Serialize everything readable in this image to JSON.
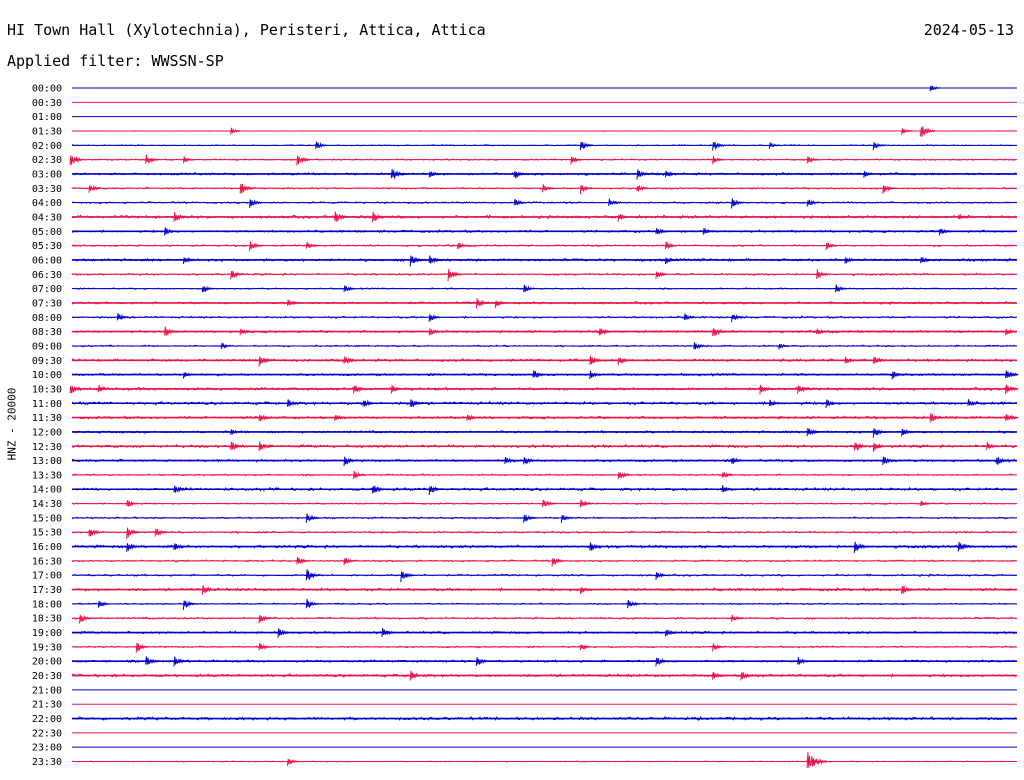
{
  "header": {
    "station": "HI Town Hall (Xylotechnia), Peristeri, Attica, Attica",
    "date": "2024-05-13",
    "filter": "Applied filter: WWSSN-SP"
  },
  "colors": {
    "even_row": "#0000c8",
    "odd_row": "#e8144a"
  },
  "chart_data": {
    "type": "line",
    "title": "HI Town Hall (Xylotechnia), Peristeri, Attica, Attica",
    "subtitle": "Applied filter: WWSSN-SP",
    "ylabel": "HNZ - 20000",
    "xlabel": "",
    "row_labels": [
      "00:00",
      "00:30",
      "01:00",
      "01:30",
      "02:00",
      "02:30",
      "03:00",
      "03:30",
      "04:00",
      "04:30",
      "05:00",
      "05:30",
      "06:00",
      "06:30",
      "07:00",
      "07:30",
      "08:00",
      "08:30",
      "09:00",
      "09:30",
      "10:00",
      "10:30",
      "11:00",
      "11:30",
      "12:00",
      "12:30",
      "13:00",
      "13:30",
      "14:00",
      "14:30",
      "15:00",
      "15:30",
      "16:00",
      "16:30",
      "17:00",
      "17:30",
      "18:00",
      "18:30",
      "19:00",
      "19:30",
      "20:00",
      "20:30",
      "21:00",
      "21:30",
      "22:00",
      "22:30",
      "23:00",
      "23:30"
    ],
    "series": [
      {
        "label": "00:00",
        "noise": 0.0,
        "events": [
          [
            0.91,
            4
          ]
        ]
      },
      {
        "label": "00:30",
        "noise": 0.0,
        "events": []
      },
      {
        "label": "01:00",
        "noise": 0.0,
        "events": []
      },
      {
        "label": "01:30",
        "noise": 0.2,
        "events": [
          [
            0.17,
            4
          ],
          [
            0.88,
            4
          ],
          [
            0.9,
            8
          ]
        ]
      },
      {
        "label": "02:00",
        "noise": 0.4,
        "events": [
          [
            0.26,
            5
          ],
          [
            0.54,
            6
          ],
          [
            0.68,
            6
          ],
          [
            0.74,
            4
          ],
          [
            0.85,
            5
          ]
        ]
      },
      {
        "label": "02:30",
        "noise": 0.5,
        "events": [
          [
            0.0,
            7
          ],
          [
            0.08,
            6
          ],
          [
            0.12,
            4
          ],
          [
            0.24,
            7
          ],
          [
            0.53,
            5
          ],
          [
            0.68,
            5
          ],
          [
            0.78,
            5
          ]
        ]
      },
      {
        "label": "03:00",
        "noise": 0.8,
        "events": [
          [
            0.34,
            8
          ],
          [
            0.38,
            5
          ],
          [
            0.47,
            6
          ],
          [
            0.6,
            6
          ],
          [
            0.63,
            5
          ],
          [
            0.84,
            4
          ]
        ]
      },
      {
        "label": "03:30",
        "noise": 0.6,
        "events": [
          [
            0.02,
            5
          ],
          [
            0.18,
            7
          ],
          [
            0.5,
            5
          ],
          [
            0.54,
            6
          ],
          [
            0.6,
            5
          ],
          [
            0.86,
            6
          ]
        ]
      },
      {
        "label": "04:00",
        "noise": 0.6,
        "events": [
          [
            0.19,
            6
          ],
          [
            0.47,
            5
          ],
          [
            0.57,
            5
          ],
          [
            0.7,
            6
          ],
          [
            0.78,
            5
          ]
        ]
      },
      {
        "label": "04:30",
        "noise": 1.0,
        "events": [
          [
            0.11,
            6
          ],
          [
            0.28,
            7
          ],
          [
            0.32,
            6
          ],
          [
            0.58,
            5
          ],
          [
            0.94,
            4
          ]
        ]
      },
      {
        "label": "05:00",
        "noise": 0.8,
        "events": [
          [
            0.1,
            5
          ],
          [
            0.62,
            5
          ],
          [
            0.67,
            5
          ],
          [
            0.92,
            5
          ]
        ]
      },
      {
        "label": "05:30",
        "noise": 0.6,
        "events": [
          [
            0.19,
            6
          ],
          [
            0.25,
            5
          ],
          [
            0.41,
            5
          ],
          [
            0.63,
            5
          ],
          [
            0.8,
            5
          ]
        ]
      },
      {
        "label": "06:00",
        "noise": 0.9,
        "events": [
          [
            0.12,
            5
          ],
          [
            0.36,
            7
          ],
          [
            0.38,
            6
          ],
          [
            0.63,
            5
          ],
          [
            0.82,
            5
          ],
          [
            0.9,
            5
          ]
        ]
      },
      {
        "label": "06:30",
        "noise": 0.7,
        "events": [
          [
            0.17,
            6
          ],
          [
            0.4,
            7
          ],
          [
            0.62,
            5
          ],
          [
            0.79,
            6
          ]
        ]
      },
      {
        "label": "07:00",
        "noise": 0.5,
        "events": [
          [
            0.14,
            5
          ],
          [
            0.29,
            5
          ],
          [
            0.48,
            5
          ],
          [
            0.81,
            5
          ]
        ]
      },
      {
        "label": "07:30",
        "noise": 0.8,
        "events": [
          [
            0.23,
            5
          ],
          [
            0.43,
            6
          ],
          [
            0.45,
            5
          ]
        ]
      },
      {
        "label": "08:00",
        "noise": 0.7,
        "events": [
          [
            0.05,
            5
          ],
          [
            0.38,
            5
          ],
          [
            0.65,
            5
          ],
          [
            0.7,
            5
          ]
        ]
      },
      {
        "label": "08:30",
        "noise": 0.8,
        "events": [
          [
            0.1,
            6
          ],
          [
            0.18,
            5
          ],
          [
            0.38,
            5
          ],
          [
            0.56,
            6
          ],
          [
            0.68,
            7
          ],
          [
            0.79,
            5
          ],
          [
            0.99,
            5
          ]
        ]
      },
      {
        "label": "09:00",
        "noise": 0.6,
        "events": [
          [
            0.16,
            4
          ],
          [
            0.66,
            6
          ],
          [
            0.75,
            4
          ]
        ]
      },
      {
        "label": "09:30",
        "noise": 0.9,
        "events": [
          [
            0.2,
            7
          ],
          [
            0.29,
            6
          ],
          [
            0.55,
            7
          ],
          [
            0.58,
            6
          ],
          [
            0.82,
            5
          ],
          [
            0.85,
            6
          ]
        ]
      },
      {
        "label": "10:00",
        "noise": 0.8,
        "events": [
          [
            0.12,
            4
          ],
          [
            0.49,
            6
          ],
          [
            0.55,
            5
          ],
          [
            0.87,
            5
          ],
          [
            0.99,
            6
          ]
        ]
      },
      {
        "label": "10:30",
        "noise": 1.0,
        "events": [
          [
            0.0,
            6
          ],
          [
            0.03,
            5
          ],
          [
            0.3,
            6
          ],
          [
            0.34,
            5
          ],
          [
            0.73,
            6
          ],
          [
            0.77,
            6
          ],
          [
            0.99,
            6
          ]
        ]
      },
      {
        "label": "11:00",
        "noise": 1.0,
        "events": [
          [
            0.23,
            5
          ],
          [
            0.31,
            6
          ],
          [
            0.36,
            6
          ],
          [
            0.74,
            5
          ],
          [
            0.8,
            5
          ],
          [
            0.95,
            5
          ]
        ]
      },
      {
        "label": "11:30",
        "noise": 0.9,
        "events": [
          [
            0.2,
            6
          ],
          [
            0.28,
            5
          ],
          [
            0.42,
            5
          ],
          [
            0.91,
            6
          ],
          [
            0.99,
            6
          ]
        ]
      },
      {
        "label": "12:00",
        "noise": 0.8,
        "events": [
          [
            0.17,
            4
          ],
          [
            0.78,
            6
          ],
          [
            0.85,
            6
          ],
          [
            0.88,
            5
          ]
        ]
      },
      {
        "label": "12:30",
        "noise": 1.0,
        "events": [
          [
            0.17,
            7
          ],
          [
            0.2,
            6
          ],
          [
            0.83,
            7
          ],
          [
            0.85,
            6
          ],
          [
            0.97,
            5
          ]
        ]
      },
      {
        "label": "13:00",
        "noise": 0.8,
        "events": [
          [
            0.29,
            6
          ],
          [
            0.46,
            5
          ],
          [
            0.48,
            6
          ],
          [
            0.7,
            5
          ],
          [
            0.86,
            6
          ],
          [
            0.98,
            6
          ]
        ]
      },
      {
        "label": "13:30",
        "noise": 0.6,
        "events": [
          [
            0.3,
            5
          ],
          [
            0.58,
            6
          ],
          [
            0.69,
            5
          ]
        ]
      },
      {
        "label": "14:00",
        "noise": 1.0,
        "events": [
          [
            0.11,
            6
          ],
          [
            0.32,
            6
          ],
          [
            0.38,
            6
          ],
          [
            0.69,
            5
          ]
        ]
      },
      {
        "label": "14:30",
        "noise": 0.5,
        "events": [
          [
            0.06,
            5
          ],
          [
            0.5,
            6
          ],
          [
            0.54,
            6
          ],
          [
            0.9,
            4
          ]
        ]
      },
      {
        "label": "15:00",
        "noise": 0.6,
        "events": [
          [
            0.25,
            6
          ],
          [
            0.48,
            6
          ],
          [
            0.52,
            5
          ]
        ]
      },
      {
        "label": "15:30",
        "noise": 0.7,
        "events": [
          [
            0.02,
            6
          ],
          [
            0.06,
            7
          ],
          [
            0.09,
            6
          ]
        ]
      },
      {
        "label": "16:00",
        "noise": 1.0,
        "events": [
          [
            0.06,
            6
          ],
          [
            0.11,
            5
          ],
          [
            0.55,
            6
          ],
          [
            0.83,
            7
          ],
          [
            0.94,
            6
          ]
        ]
      },
      {
        "label": "16:30",
        "noise": 0.6,
        "events": [
          [
            0.24,
            6
          ],
          [
            0.29,
            5
          ],
          [
            0.51,
            6
          ]
        ]
      },
      {
        "label": "17:00",
        "noise": 0.7,
        "events": [
          [
            0.25,
            7
          ],
          [
            0.35,
            7
          ],
          [
            0.62,
            5
          ]
        ]
      },
      {
        "label": "17:30",
        "noise": 1.0,
        "events": [
          [
            0.14,
            6
          ],
          [
            0.54,
            5
          ],
          [
            0.88,
            6
          ]
        ]
      },
      {
        "label": "18:00",
        "noise": 0.5,
        "events": [
          [
            0.03,
            5
          ],
          [
            0.12,
            6
          ],
          [
            0.25,
            6
          ],
          [
            0.59,
            6
          ]
        ]
      },
      {
        "label": "18:30",
        "noise": 0.7,
        "events": [
          [
            0.01,
            6
          ],
          [
            0.2,
            6
          ],
          [
            0.7,
            5
          ]
        ]
      },
      {
        "label": "19:00",
        "noise": 0.8,
        "events": [
          [
            0.22,
            6
          ],
          [
            0.33,
            6
          ],
          [
            0.63,
            5
          ]
        ]
      },
      {
        "label": "19:30",
        "noise": 0.6,
        "events": [
          [
            0.07,
            6
          ],
          [
            0.2,
            5
          ],
          [
            0.54,
            5
          ],
          [
            0.68,
            5
          ]
        ]
      },
      {
        "label": "20:00",
        "noise": 0.8,
        "events": [
          [
            0.08,
            6
          ],
          [
            0.11,
            6
          ],
          [
            0.43,
            6
          ],
          [
            0.62,
            6
          ],
          [
            0.77,
            5
          ]
        ]
      },
      {
        "label": "20:30",
        "noise": 1.0,
        "events": [
          [
            0.36,
            6
          ],
          [
            0.68,
            5
          ],
          [
            0.71,
            6
          ]
        ]
      },
      {
        "label": "21:00",
        "noise": 0.0,
        "events": []
      },
      {
        "label": "21:30",
        "noise": 0.0,
        "events": []
      },
      {
        "label": "22:00",
        "noise": 1.0,
        "events": []
      },
      {
        "label": "22:30",
        "noise": 0.0,
        "events": []
      },
      {
        "label": "23:00",
        "noise": 0.0,
        "events": []
      },
      {
        "label": "23:30",
        "noise": 0.3,
        "events": [
          [
            0.23,
            5
          ],
          [
            0.78,
            12
          ]
        ]
      }
    ]
  }
}
